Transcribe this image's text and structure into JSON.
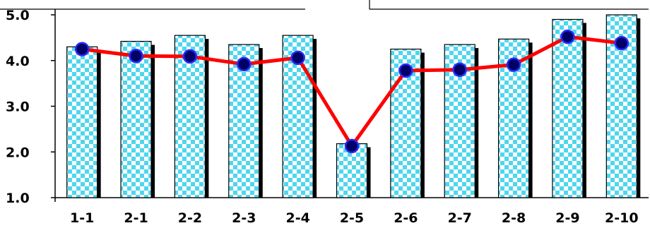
{
  "chart_data": {
    "type": "bar",
    "title": "",
    "xlabel": "",
    "ylabel": "",
    "categories": [
      "1-1",
      "2-1",
      "2-2",
      "2-3",
      "2-4",
      "2-5",
      "2-6",
      "2-7",
      "2-8",
      "2-9",
      "2-10"
    ],
    "y_ticks": [
      "1.0",
      "2.0",
      "3.0",
      "4.0",
      "5.0"
    ],
    "ylim": [
      1.0,
      5.0
    ],
    "grid": false,
    "legend": "none",
    "series": [
      {
        "type": "bar",
        "values": [
          4.3,
          4.42,
          4.55,
          4.35,
          4.55,
          2.18,
          4.25,
          4.35,
          4.47,
          4.9,
          5.0
        ],
        "fill": "checkerboard",
        "color_a": "#4fd6ee",
        "color_b": "#ffffff",
        "shadow_color": "#000000"
      },
      {
        "type": "line",
        "values": [
          4.25,
          4.1,
          4.09,
          3.92,
          4.06,
          2.13,
          3.78,
          3.8,
          3.91,
          4.52,
          4.38
        ],
        "line_color": "#ff0000",
        "marker_color": "#000066",
        "marker_edge": "#2a2aff"
      }
    ]
  }
}
